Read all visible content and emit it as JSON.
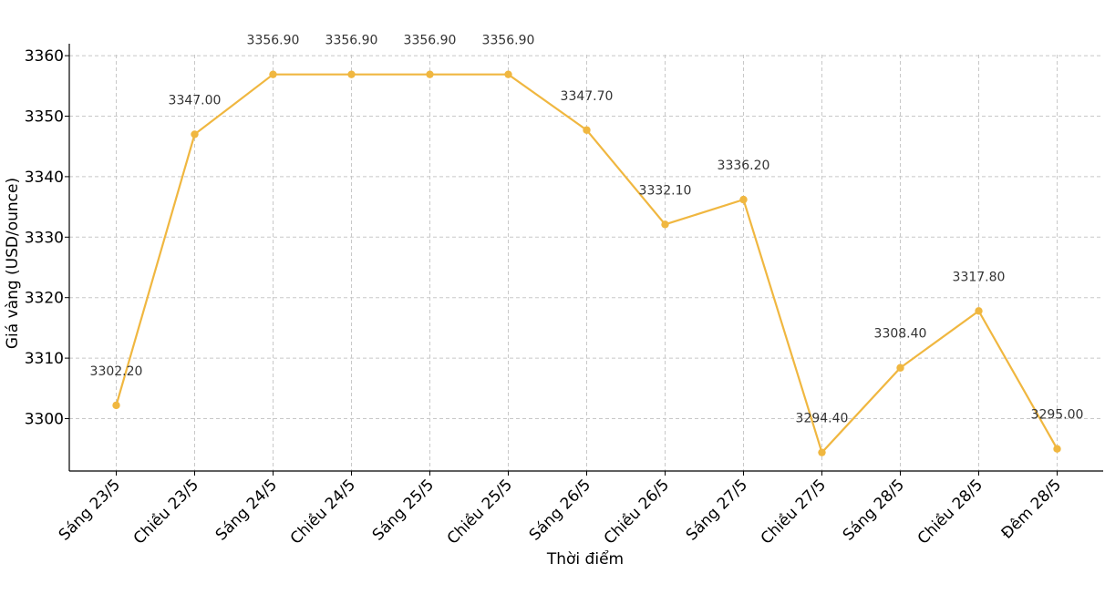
{
  "chart_data": {
    "type": "line",
    "title": "",
    "xlabel": "Thời điểm",
    "ylabel": "Giá vàng (USD/ounce)",
    "categories": [
      "Sáng 23/5",
      "Chiều 23/5",
      "Sáng 24/5",
      "Chiều 24/5",
      "Sáng 25/5",
      "Chiều 25/5",
      "Sáng 26/5",
      "Chiều 26/5",
      "Sáng 27/5",
      "Chiều 27/5",
      "Sáng 28/5",
      "Chiều 28/5",
      "Đêm 28/5"
    ],
    "values": [
      3302.2,
      3347.0,
      3356.9,
      3356.9,
      3356.9,
      3356.9,
      3347.7,
      3332.1,
      3336.2,
      3294.4,
      3308.4,
      3317.8,
      3295.0
    ],
    "data_labels": [
      "3302.20",
      "3347.00",
      "3356.90",
      "3356.90",
      "3356.90",
      "3356.90",
      "3347.70",
      "3332.10",
      "3336.20",
      "3294.40",
      "3308.40",
      "3317.80",
      "3295.00"
    ],
    "yticks": [
      3300,
      3310,
      3320,
      3330,
      3340,
      3350,
      3360
    ],
    "ylim": [
      3291.25,
      3360
    ],
    "grid": true,
    "color": "#f0b740",
    "marker": "circle"
  }
}
